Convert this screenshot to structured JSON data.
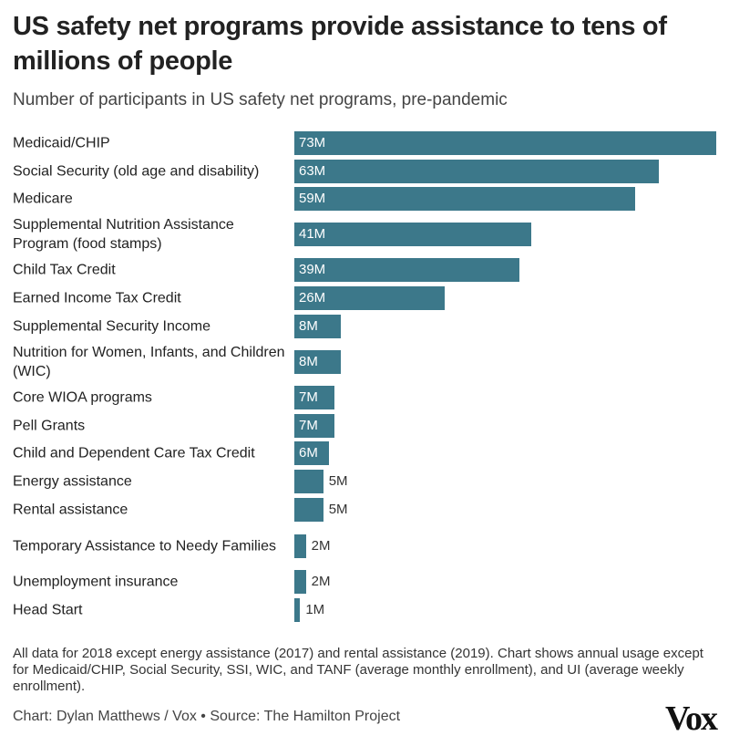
{
  "chart_data": {
    "type": "hbar",
    "title": "US safety net programs provide assistance to tens of millions of people",
    "subtitle": "Number of participants in US safety net programs, pre-pandemic",
    "categories": [
      "Medicaid/CHIP",
      "Social Security (old age and disability)",
      "Medicare",
      "Supplemental Nutrition Assistance Program (food stamps)",
      "Child Tax Credit",
      "Earned Income Tax Credit",
      "Supplemental Security Income",
      "Nutrition for Women, Infants, and Children (WIC)",
      "Core WIOA programs",
      "Pell Grants",
      "Child and Dependent Care Tax Credit",
      "Energy assistance",
      "Rental assistance",
      "Temporary Assistance to Needy Families",
      "Unemployment insurance",
      "Head Start"
    ],
    "values": [
      73,
      63,
      59,
      41,
      39,
      26,
      8,
      8,
      7,
      7,
      6,
      5,
      5,
      2,
      2,
      1
    ],
    "value_labels": [
      "73M",
      "63M",
      "59M",
      "41M",
      "39M",
      "26M",
      "8M",
      "8M",
      "7M",
      "7M",
      "6M",
      "5M",
      "5M",
      "2M",
      "2M",
      "1M"
    ],
    "color": "#3c788a",
    "note": "All data for 2018 except energy assistance (2017) and rental assistance (2019). Chart shows annual usage except for Medicaid/CHIP, Social Security, SSI, WIC, and TANF (average monthly enrollment), and UI (average weekly enrollment).",
    "credit": "Chart: Dylan Matthews / Vox • Source: The Hamilton Project",
    "logo": "Vox"
  }
}
